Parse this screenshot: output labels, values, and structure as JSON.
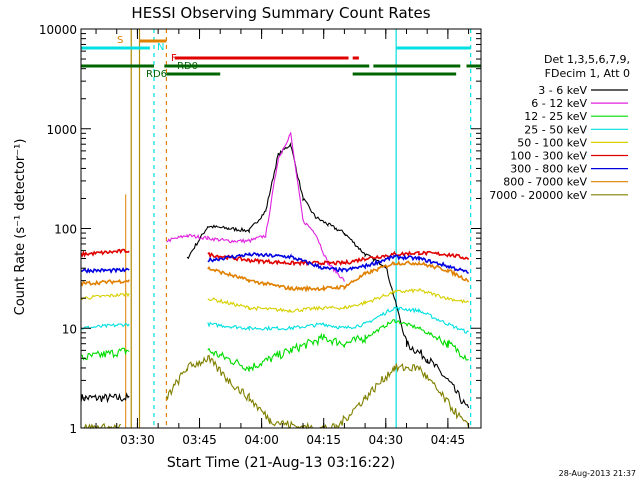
{
  "chart_data": {
    "type": "line",
    "title": "HESSI Observing Summary Count Rates",
    "xlabel": "Start Time (21-Aug-13 03:16:22)",
    "ylabel": "Count Rate (s⁻¹ detector⁻¹)",
    "yscale": "log",
    "ylim": [
      1,
      10000
    ],
    "xlim": [
      "03:16:22",
      "04:53:00"
    ],
    "x_ticks": [
      "03:30",
      "03:45",
      "04:00",
      "04:15",
      "04:30",
      "04:45"
    ],
    "y_ticks": [
      "1",
      "10",
      "100",
      "1000",
      "10000"
    ],
    "grid": false,
    "legend_placement": "right",
    "legend_header": [
      "Det 1,3,5,6,7,9,",
      "FDecim 1, Att 0"
    ],
    "timestamp": "28-Aug-2013 21:37",
    "series": [
      {
        "name": "3 - 6 keV",
        "color": "#000000",
        "x": [
          "03:16:22",
          "03:28",
          "03:37",
          "03:42",
          "03:47",
          "03:52",
          "03:57",
          "04:01",
          "04:04",
          "04:07",
          "04:10",
          "04:13",
          "04:16",
          "04:20",
          "04:25",
          "04:30",
          "04:35",
          "04:40",
          "04:45",
          "04:50"
        ],
        "values": [
          2,
          2,
          null,
          50,
          105,
          100,
          95,
          150,
          550,
          700,
          200,
          130,
          110,
          90,
          55,
          42,
          7,
          5,
          3,
          1.5
        ]
      },
      {
        "name": "6 - 12 keV",
        "color": "#e020e0",
        "x": [
          "03:37",
          "03:42",
          "03:47",
          "03:52",
          "03:57",
          "04:01",
          "04:04",
          "04:07",
          "04:10",
          "04:13",
          "04:16",
          "04:20"
        ],
        "values": [
          75,
          85,
          80,
          75,
          75,
          85,
          500,
          900,
          120,
          90,
          45,
          30
        ]
      },
      {
        "name": "12 - 25 keV",
        "color": "#00dd00",
        "x": [
          "03:16:22",
          "03:28",
          "03:37",
          "03:47",
          "03:57",
          "04:07",
          "04:15",
          "04:20",
          "04:25",
          "04:32",
          "04:38",
          "04:45",
          "04:50"
        ],
        "values": [
          5,
          6,
          null,
          6,
          4,
          6,
          8,
          7,
          8,
          12,
          10,
          7,
          5
        ]
      },
      {
        "name": "25 - 50 keV",
        "color": "#00e0e0",
        "x": [
          "03:16:22",
          "03:28",
          "03:37",
          "03:47",
          "03:57",
          "04:07",
          "04:15",
          "04:20",
          "04:25",
          "04:32",
          "04:38",
          "04:45",
          "04:50"
        ],
        "values": [
          10,
          11,
          null,
          11,
          10,
          10,
          11,
          10,
          11,
          16,
          15,
          11,
          9
        ]
      },
      {
        "name": "50 - 100 keV",
        "color": "#d8d000",
        "x": [
          "03:16:22",
          "03:28",
          "03:37",
          "03:47",
          "03:57",
          "04:07",
          "04:15",
          "04:20",
          "04:25",
          "04:32",
          "04:38",
          "04:45",
          "04:50"
        ],
        "values": [
          20,
          22,
          null,
          20,
          16,
          15,
          16,
          16,
          18,
          23,
          24,
          20,
          18
        ]
      },
      {
        "name": "100 - 300 keV",
        "color": "#e00000",
        "x": [
          "03:16:22",
          "03:28",
          "03:37",
          "03:47",
          "03:57",
          "04:07",
          "04:15",
          "04:20",
          "04:25",
          "04:32",
          "04:38",
          "04:45",
          "04:50"
        ],
        "values": [
          55,
          60,
          null,
          55,
          48,
          45,
          45,
          45,
          50,
          55,
          57,
          55,
          50
        ]
      },
      {
        "name": "300 - 800 keV",
        "color": "#0000e0",
        "x": [
          "03:16:22",
          "03:28",
          "03:37",
          "03:47",
          "03:57",
          "04:07",
          "04:15",
          "04:20",
          "04:25",
          "04:32",
          "04:38",
          "04:45",
          "04:50"
        ],
        "values": [
          38,
          38,
          null,
          48,
          55,
          52,
          40,
          38,
          42,
          52,
          50,
          42,
          36
        ]
      },
      {
        "name": "800 - 7000 keV",
        "color": "#e08000",
        "x": [
          "03:16:22",
          "03:28",
          "03:37",
          "03:47",
          "03:57",
          "04:07",
          "04:15",
          "04:20",
          "04:25",
          "04:32",
          "04:38",
          "04:45",
          "04:50"
        ],
        "values": [
          28,
          30,
          null,
          40,
          30,
          25,
          25,
          26,
          35,
          45,
          45,
          38,
          30
        ]
      },
      {
        "name": "7000 - 20000 keV",
        "color": "#808000",
        "x": [
          "03:16:22",
          "03:26",
          "03:28",
          "03:37",
          "03:42",
          "03:47",
          "03:52",
          "03:57",
          "04:02",
          "04:10",
          "04:18",
          "04:25",
          "04:32",
          "04:38",
          "04:44",
          "04:50"
        ],
        "values": [
          1,
          1,
          null,
          2,
          4,
          5,
          3,
          2,
          1.2,
          1,
          1,
          2,
          4,
          4,
          2,
          1
        ]
      }
    ],
    "flags": [
      {
        "label": "S",
        "color": "#e08000"
      },
      {
        "label": "N",
        "color": "#00e0e0"
      },
      {
        "label": "F",
        "color": "#e00000"
      },
      {
        "label": "RD0",
        "color": "#006400"
      },
      {
        "label": "RD6",
        "color": "#006400"
      }
    ]
  }
}
